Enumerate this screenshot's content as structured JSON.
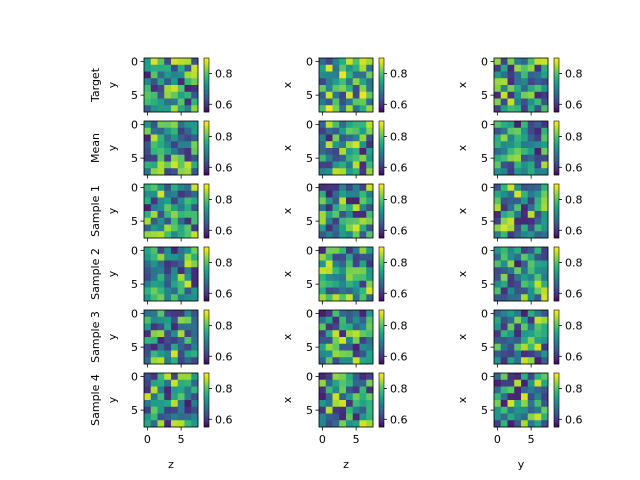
{
  "chart_data": {
    "type": "heatmap",
    "grid_size": 8,
    "row_labels": [
      "Target",
      "Mean",
      "Sample 1",
      "Sample 2",
      "Sample 3",
      "Sample 4"
    ],
    "column_ylabels": [
      "y",
      "x",
      "x"
    ],
    "column_xlabels": [
      "z",
      "z",
      "y"
    ],
    "tick_labels": [
      "0",
      "5"
    ],
    "colorbar": {
      "ticks": [
        "0.6",
        "0.8"
      ],
      "range": [
        0.55,
        0.9
      ],
      "colormap": "viridis"
    },
    "seed": 20240601
  }
}
